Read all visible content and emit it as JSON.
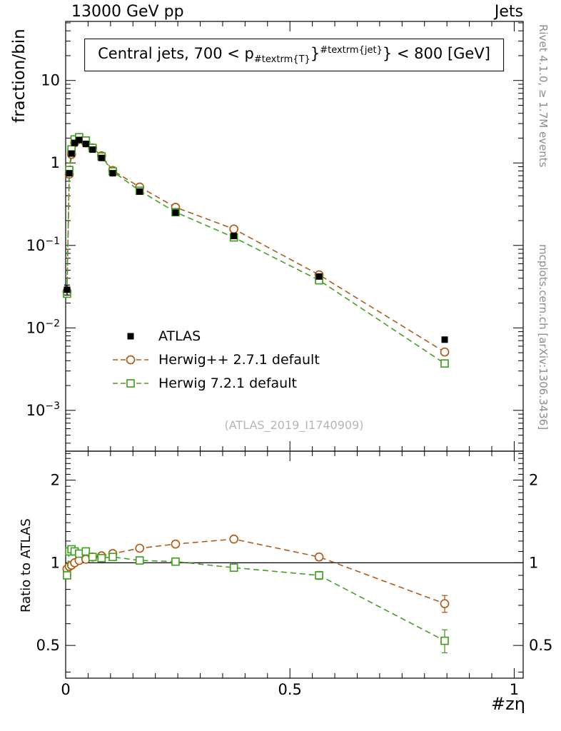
{
  "header": {
    "left": "13000 GeV pp",
    "right": "Jets"
  },
  "side": {
    "top_right": "Rivet 4.1.0, ≥ 1.7M events",
    "bottom_right": "mcplots.cern.ch [arXiv:1306.3436]"
  },
  "watermark": "(ATLAS_2019_I1740909)",
  "title": {
    "pre": "Central jets, 700 < p",
    "sub": "#textrm{T}",
    "mid": "}",
    "sup": "#textrm{jet}",
    "post": "} < 800 [GeV]"
  },
  "axes": {
    "y_label": "fraction/bin",
    "ratio_label": "Ratio to ATLAS",
    "x_label": "#zη"
  },
  "legend": [
    {
      "label": "ATLAS",
      "color": "#000000",
      "marker": "square-filled",
      "line": "none"
    },
    {
      "label": "Herwig++ 2.7.1 default",
      "color": "#b05c18",
      "marker": "circle-open",
      "line": "dashed"
    },
    {
      "label": "Herwig 7.2.1 default",
      "color": "#44a024",
      "marker": "square-open",
      "line": "dashed"
    }
  ],
  "chart_data": {
    "type": "line",
    "title": "Central jets, 700 < p_{#textrm{T}}^{#textrm{jet}} < 800 [GeV]",
    "xlabel": "#zη",
    "ylabel": "fraction/bin",
    "xscale": "linear",
    "yscale": "log",
    "xlim": [
      0,
      1.02
    ],
    "ylim": [
      0.00032,
      52
    ],
    "x": [
      0.003,
      0.008,
      0.013,
      0.02,
      0.03,
      0.045,
      0.06,
      0.08,
      0.105,
      0.165,
      0.245,
      0.375,
      0.565,
      0.845
    ],
    "series": [
      {
        "name": "ATLAS",
        "color": "#000000",
        "marker": "square-filled",
        "line": "none",
        "values": [
          0.029,
          0.75,
          1.3,
          1.75,
          1.9,
          1.7,
          1.45,
          1.15,
          0.75,
          0.45,
          0.25,
          0.13,
          0.042,
          0.0072
        ],
        "yerr": [
          0.004,
          0.03,
          0.04,
          0.05,
          0.05,
          0.05,
          0.04,
          0.03,
          0.02,
          0.012,
          0.008,
          0.004,
          0.0015,
          0.0004
        ]
      },
      {
        "name": "Herwig++ 2.7.1 default",
        "color": "#b05c18",
        "marker": "circle-open",
        "line": "dashed",
        "values": [
          0.0275,
          0.73,
          1.27,
          1.75,
          1.94,
          1.75,
          1.52,
          1.22,
          0.81,
          0.51,
          0.29,
          0.158,
          0.044,
          0.0051
        ],
        "yerr": [
          0.001,
          0.008,
          0.01,
          0.012,
          0.012,
          0.012,
          0.01,
          0.009,
          0.007,
          0.005,
          0.004,
          0.003,
          0.0012,
          0.0004
        ]
      },
      {
        "name": "Herwig 7.2.1 default",
        "color": "#44a024",
        "marker": "square-open",
        "line": "dashed",
        "values": [
          0.026,
          0.82,
          1.46,
          1.93,
          2.05,
          1.87,
          1.52,
          1.2,
          0.79,
          0.46,
          0.253,
          0.125,
          0.0378,
          0.0037
        ],
        "yerr": [
          0.001,
          0.008,
          0.01,
          0.012,
          0.012,
          0.012,
          0.01,
          0.009,
          0.007,
          0.005,
          0.004,
          0.003,
          0.0012,
          0.0003
        ]
      }
    ],
    "yticks": [
      {
        "v": 0.001,
        "label": "10",
        "exp": "−3"
      },
      {
        "v": 0.01,
        "label": "10",
        "exp": "−2"
      },
      {
        "v": 0.1,
        "label": "10",
        "exp": "−1"
      },
      {
        "v": 1,
        "label": "1"
      },
      {
        "v": 10,
        "label": "10"
      }
    ],
    "xticks": [
      {
        "v": 0,
        "label": "0"
      },
      {
        "v": 0.5,
        "label": "0.5"
      },
      {
        "v": 1,
        "label": "1"
      }
    ],
    "ratio": {
      "label": "Ratio to ATLAS",
      "yscale": "log",
      "ylim": [
        0.38,
        2.55
      ],
      "baseline": 1,
      "yticks": [
        {
          "v": 0.5,
          "label": "0.5"
        },
        {
          "v": 1,
          "label": "1"
        },
        {
          "v": 2,
          "label": "2"
        }
      ],
      "series": [
        {
          "name": "Herwig++ 2.7.1 default",
          "values": [
            0.95,
            0.97,
            0.98,
            1.0,
            1.02,
            1.03,
            1.05,
            1.06,
            1.08,
            1.13,
            1.17,
            1.22,
            1.05,
            0.71
          ],
          "yerr": [
            0.02,
            0.01,
            0.01,
            0.01,
            0.01,
            0.01,
            0.01,
            0.01,
            0.012,
            0.015,
            0.018,
            0.02,
            0.03,
            0.05
          ]
        },
        {
          "name": "Herwig 7.2.1 default",
          "values": [
            0.9,
            1.1,
            1.12,
            1.1,
            1.08,
            1.1,
            1.05,
            1.04,
            1.05,
            1.02,
            1.01,
            0.96,
            0.9,
            0.52
          ],
          "yerr": [
            0.02,
            0.01,
            0.01,
            0.01,
            0.01,
            0.01,
            0.01,
            0.01,
            0.012,
            0.015,
            0.018,
            0.02,
            0.03,
            0.05
          ]
        }
      ]
    }
  }
}
